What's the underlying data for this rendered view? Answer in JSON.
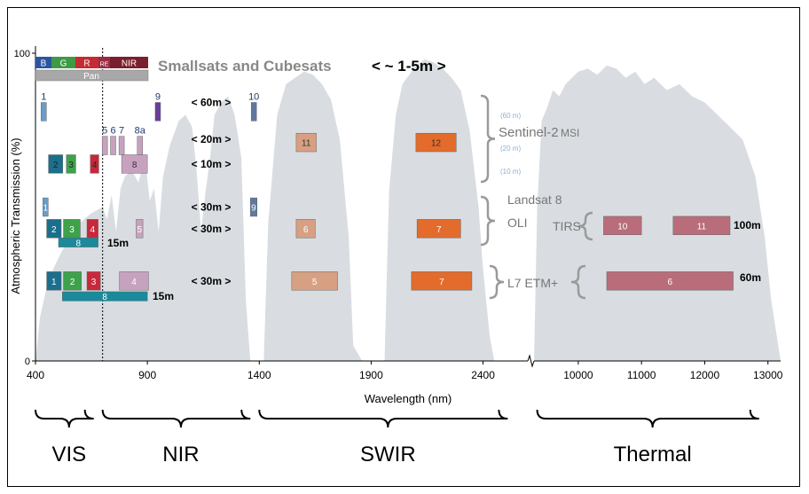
{
  "chart_data": {
    "type": "area",
    "title": "Smallsats and Cubesats",
    "title_res": "< ~ 1-5m >",
    "xlabel": "Wavelength (nm)",
    "ylabel": "Atmospheric Transmission (%)",
    "ylim": [
      0,
      100
    ],
    "y_ticks": [
      "0",
      "100"
    ],
    "x_ticks_left": [
      {
        "v": 400,
        "label": "400"
      },
      {
        "v": 900,
        "label": "900"
      },
      {
        "v": 1400,
        "label": "1400"
      },
      {
        "v": 1900,
        "label": "1900"
      },
      {
        "v": 2400,
        "label": "2400"
      }
    ],
    "x_ticks_right": [
      {
        "v": 10000,
        "label": "10000"
      },
      {
        "v": 11000,
        "label": "11000"
      },
      {
        "v": 12000,
        "label": "12000"
      },
      {
        "v": 13000,
        "label": "13000"
      }
    ],
    "transmission_left": [
      [
        400,
        0
      ],
      [
        420,
        14
      ],
      [
        450,
        24
      ],
      [
        480,
        30
      ],
      [
        520,
        36
      ],
      [
        560,
        40
      ],
      [
        600,
        45
      ],
      [
        650,
        48
      ],
      [
        700,
        50
      ],
      [
        720,
        46
      ],
      [
        740,
        54
      ],
      [
        760,
        42
      ],
      [
        780,
        56
      ],
      [
        800,
        60
      ],
      [
        830,
        62
      ],
      [
        860,
        58
      ],
      [
        890,
        66
      ],
      [
        910,
        52
      ],
      [
        930,
        56
      ],
      [
        950,
        42
      ],
      [
        970,
        60
      ],
      [
        1000,
        70
      ],
      [
        1040,
        78
      ],
      [
        1070,
        80
      ],
      [
        1100,
        76
      ],
      [
        1120,
        62
      ],
      [
        1140,
        42
      ],
      [
        1160,
        55
      ],
      [
        1180,
        66
      ],
      [
        1200,
        80
      ],
      [
        1230,
        84
      ],
      [
        1260,
        86
      ],
      [
        1290,
        80
      ],
      [
        1320,
        66
      ],
      [
        1340,
        20
      ],
      [
        1360,
        0
      ],
      [
        1380,
        0
      ],
      [
        1400,
        0
      ],
      [
        1420,
        0
      ],
      [
        1440,
        45
      ],
      [
        1480,
        80
      ],
      [
        1520,
        90
      ],
      [
        1560,
        92
      ],
      [
        1600,
        94
      ],
      [
        1640,
        93
      ],
      [
        1680,
        90
      ],
      [
        1720,
        85
      ],
      [
        1760,
        72
      ],
      [
        1800,
        40
      ],
      [
        1820,
        5
      ],
      [
        1860,
        0
      ],
      [
        1900,
        0
      ],
      [
        1940,
        0
      ],
      [
        1960,
        0
      ],
      [
        1980,
        55
      ],
      [
        2010,
        80
      ],
      [
        2040,
        90
      ],
      [
        2070,
        93
      ],
      [
        2100,
        96
      ],
      [
        2140,
        98
      ],
      [
        2180,
        97
      ],
      [
        2220,
        95
      ],
      [
        2260,
        92
      ],
      [
        2300,
        88
      ],
      [
        2340,
        75
      ],
      [
        2380,
        50
      ],
      [
        2400,
        30
      ],
      [
        2430,
        8
      ],
      [
        2450,
        0
      ]
    ],
    "transmission_right": [
      [
        9300,
        0
      ],
      [
        9350,
        50
      ],
      [
        9420,
        78
      ],
      [
        9500,
        82
      ],
      [
        9600,
        88
      ],
      [
        9700,
        86
      ],
      [
        9800,
        90
      ],
      [
        9900,
        92
      ],
      [
        10000,
        94
      ],
      [
        10150,
        95
      ],
      [
        10300,
        93
      ],
      [
        10450,
        96
      ],
      [
        10600,
        95
      ],
      [
        10750,
        92
      ],
      [
        10900,
        94
      ],
      [
        11050,
        90
      ],
      [
        11200,
        92
      ],
      [
        11400,
        88
      ],
      [
        11600,
        90
      ],
      [
        11800,
        86
      ],
      [
        12000,
        84
      ],
      [
        12200,
        80
      ],
      [
        12400,
        76
      ],
      [
        12600,
        72
      ],
      [
        12800,
        60
      ],
      [
        12950,
        40
      ],
      [
        13050,
        20
      ],
      [
        13200,
        0
      ]
    ],
    "wideband_rgb": {
      "b": "B",
      "g": "G",
      "r": "R",
      "re": "RE",
      "nir": "NIR",
      "pan": "Pan"
    },
    "res_labels": [
      {
        "text": "< 60m >",
        "y": 84
      },
      {
        "text": "< 20m >",
        "y": 72
      },
      {
        "text": "< 10m >",
        "y": 64
      },
      {
        "text": "< 30m >",
        "y": 50
      },
      {
        "text": "< 30m >",
        "y": 43
      },
      {
        "text": "< 30m >",
        "y": 26
      }
    ],
    "sensors": {
      "sentinel": {
        "name": "Sentinel-2",
        "suffix": "MSI",
        "notes": [
          "(60 m)",
          "(20 m)",
          "(10 m)"
        ]
      },
      "landsat": {
        "line1": "Landsat 8",
        "line2": "OLI",
        "tirs": "TIRS",
        "tirs_res": "100m"
      },
      "etm": {
        "name": "L7 ETM+",
        "thermal_res": "60m"
      },
      "pan_res": [
        "15m",
        "15m"
      ]
    },
    "bands": [
      {
        "label": "1",
        "x0": 425,
        "x1": 445,
        "y0": 78,
        "y1": 84,
        "color": "#6a9cc7",
        "text_color": "#fff",
        "top_label": true
      },
      {
        "label": "9",
        "x0": 935,
        "x1": 945,
        "y0": 78,
        "y1": 84,
        "color": "#6a3d9a",
        "text_color": "#fff",
        "top_label": true
      },
      {
        "label": "10",
        "x0": 1364,
        "x1": 1384,
        "y0": 78,
        "y1": 84,
        "color": "#6078a0",
        "text_color": "#fff",
        "top_label": true
      },
      {
        "label": "5",
        "x0": 698,
        "x1": 712,
        "y0": 67,
        "y1": 73,
        "color": "#c7a2bf",
        "text_color": "#333",
        "top_label": true
      },
      {
        "label": "6",
        "x0": 735,
        "x1": 750,
        "y0": 67,
        "y1": 73,
        "color": "#c7a2bf",
        "text_color": "#333",
        "top_label": true
      },
      {
        "label": "7",
        "x0": 773,
        "x1": 792,
        "y0": 67,
        "y1": 73,
        "color": "#c7a2bf",
        "text_color": "#333",
        "top_label": true
      },
      {
        "label": "8a",
        "x0": 855,
        "x1": 875,
        "y0": 67,
        "y1": 73,
        "color": "#c7a2bf",
        "text_color": "#333",
        "top_label": true
      },
      {
        "label": "11",
        "x0": 1565,
        "x1": 1655,
        "y0": 68,
        "y1": 74,
        "color": "#d7a083",
        "text_color": "#333"
      },
      {
        "label": "12",
        "x0": 2100,
        "x1": 2280,
        "y0": 68,
        "y1": 74,
        "color": "#e36b2b",
        "text_color": "#333"
      },
      {
        "label": "2",
        "x0": 458,
        "x1": 522,
        "y0": 61,
        "y1": 67,
        "color": "#1b6f8c",
        "text_color": "#222"
      },
      {
        "label": "3",
        "x0": 538,
        "x1": 580,
        "y0": 61,
        "y1": 67,
        "color": "#3ea24b",
        "text_color": "#222"
      },
      {
        "label": "4",
        "x0": 645,
        "x1": 683,
        "y0": 61,
        "y1": 67,
        "color": "#c8283a",
        "text_color": "#222"
      },
      {
        "label": "8",
        "x0": 785,
        "x1": 900,
        "y0": 61,
        "y1": 67,
        "color": "#c7a2bf",
        "text_color": "#333"
      },
      {
        "label": "1",
        "x0": 433,
        "x1": 453,
        "y0": 47,
        "y1": 53,
        "color": "#6a9cc7",
        "text_color": "#fff"
      },
      {
        "label": "9",
        "x0": 1360,
        "x1": 1390,
        "y0": 47,
        "y1": 53,
        "color": "#6078a0",
        "text_color": "#fff"
      },
      {
        "label": "2",
        "x0": 450,
        "x1": 515,
        "y0": 40,
        "y1": 46,
        "color": "#1b6f8c",
        "text_color": "#fff"
      },
      {
        "label": "3",
        "x0": 525,
        "x1": 600,
        "y0": 40,
        "y1": 46,
        "color": "#3ea24b",
        "text_color": "#fff"
      },
      {
        "label": "4",
        "x0": 630,
        "x1": 680,
        "y0": 40,
        "y1": 46,
        "color": "#c8283a",
        "text_color": "#fff"
      },
      {
        "label": "5",
        "x0": 850,
        "x1": 880,
        "y0": 40,
        "y1": 46,
        "color": "#c7a2bf",
        "text_color": "#fff"
      },
      {
        "label": "6",
        "x0": 1565,
        "x1": 1650,
        "y0": 40,
        "y1": 46,
        "color": "#d7a083",
        "text_color": "#fff"
      },
      {
        "label": "7",
        "x0": 2105,
        "x1": 2300,
        "y0": 40,
        "y1": 46,
        "color": "#e36b2b",
        "text_color": "#fff"
      },
      {
        "label": "8",
        "x0": 503,
        "x1": 680,
        "y0": 37,
        "y1": 40,
        "color": "#1a8a9c",
        "text_color": "#fff"
      },
      {
        "label": "1",
        "x0": 450,
        "x1": 515,
        "y0": 23,
        "y1": 29,
        "color": "#1b6f8c",
        "text_color": "#fff"
      },
      {
        "label": "2",
        "x0": 525,
        "x1": 605,
        "y0": 23,
        "y1": 29,
        "color": "#3ea24b",
        "text_color": "#fff"
      },
      {
        "label": "3",
        "x0": 630,
        "x1": 690,
        "y0": 23,
        "y1": 29,
        "color": "#c8283a",
        "text_color": "#fff"
      },
      {
        "label": "4",
        "x0": 775,
        "x1": 905,
        "y0": 23,
        "y1": 29,
        "color": "#c7a2bf",
        "text_color": "#fff"
      },
      {
        "label": "5",
        "x0": 1545,
        "x1": 1750,
        "y0": 23,
        "y1": 29,
        "color": "#d7a083",
        "text_color": "#fff"
      },
      {
        "label": "7",
        "x0": 2080,
        "x1": 2350,
        "y0": 23,
        "y1": 29,
        "color": "#e36b2b",
        "text_color": "#fff"
      },
      {
        "label": "8",
        "x0": 520,
        "x1": 900,
        "y0": 19.5,
        "y1": 22.5,
        "color": "#1a8a9c",
        "text_color": "#fff"
      },
      {
        "label": "10",
        "x0": 10400,
        "x1": 11000,
        "y0": 41,
        "y1": 47,
        "color": "#b96d7a",
        "text_color": "#fff",
        "thermal": true
      },
      {
        "label": "11",
        "x0": 11500,
        "x1": 12400,
        "y0": 41,
        "y1": 47,
        "color": "#b96d7a",
        "text_color": "#fff",
        "thermal": true
      },
      {
        "label": "6",
        "x0": 10450,
        "x1": 12450,
        "y0": 23,
        "y1": 29,
        "color": "#b96d7a",
        "text_color": "#fff",
        "thermal": true
      }
    ],
    "regions": [
      {
        "label": "VIS",
        "x0": 400,
        "x1": 700
      },
      {
        "label": "NIR",
        "x0": 700,
        "x1": 1400
      },
      {
        "label": "SWIR",
        "x0": 1400,
        "x1": 2550,
        "end_on_right": false
      },
      {
        "label": "Thermal",
        "x0": 9350,
        "x1": 13000,
        "right": true
      }
    ],
    "colors": {
      "area": "#d9dde1",
      "text": "#000000",
      "gray_text": "#888888",
      "brace": "#9a9a9a"
    }
  }
}
